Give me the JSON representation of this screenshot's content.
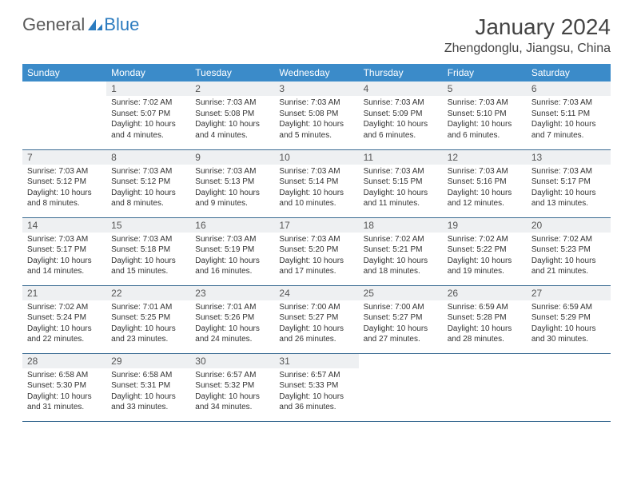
{
  "brand": {
    "part1": "General",
    "part2": "Blue"
  },
  "title": "January 2024",
  "location": "Zhengdonglu, Jiangsu, China",
  "colors": {
    "header_bg": "#3b8bc9",
    "header_text": "#ffffff",
    "daynum_bg": "#eef0f2",
    "row_border": "#3b6c93",
    "logo_gray": "#5a5a5a",
    "logo_blue": "#2b7bbf"
  },
  "weekdays": [
    "Sunday",
    "Monday",
    "Tuesday",
    "Wednesday",
    "Thursday",
    "Friday",
    "Saturday"
  ],
  "weeks": [
    [
      {
        "blank": true
      },
      {
        "n": "1",
        "sr": "7:02 AM",
        "ss": "5:07 PM",
        "dl": "10 hours and 4 minutes."
      },
      {
        "n": "2",
        "sr": "7:03 AM",
        "ss": "5:08 PM",
        "dl": "10 hours and 4 minutes."
      },
      {
        "n": "3",
        "sr": "7:03 AM",
        "ss": "5:08 PM",
        "dl": "10 hours and 5 minutes."
      },
      {
        "n": "4",
        "sr": "7:03 AM",
        "ss": "5:09 PM",
        "dl": "10 hours and 6 minutes."
      },
      {
        "n": "5",
        "sr": "7:03 AM",
        "ss": "5:10 PM",
        "dl": "10 hours and 6 minutes."
      },
      {
        "n": "6",
        "sr": "7:03 AM",
        "ss": "5:11 PM",
        "dl": "10 hours and 7 minutes."
      }
    ],
    [
      {
        "n": "7",
        "sr": "7:03 AM",
        "ss": "5:12 PM",
        "dl": "10 hours and 8 minutes."
      },
      {
        "n": "8",
        "sr": "7:03 AM",
        "ss": "5:12 PM",
        "dl": "10 hours and 8 minutes."
      },
      {
        "n": "9",
        "sr": "7:03 AM",
        "ss": "5:13 PM",
        "dl": "10 hours and 9 minutes."
      },
      {
        "n": "10",
        "sr": "7:03 AM",
        "ss": "5:14 PM",
        "dl": "10 hours and 10 minutes."
      },
      {
        "n": "11",
        "sr": "7:03 AM",
        "ss": "5:15 PM",
        "dl": "10 hours and 11 minutes."
      },
      {
        "n": "12",
        "sr": "7:03 AM",
        "ss": "5:16 PM",
        "dl": "10 hours and 12 minutes."
      },
      {
        "n": "13",
        "sr": "7:03 AM",
        "ss": "5:17 PM",
        "dl": "10 hours and 13 minutes."
      }
    ],
    [
      {
        "n": "14",
        "sr": "7:03 AM",
        "ss": "5:17 PM",
        "dl": "10 hours and 14 minutes."
      },
      {
        "n": "15",
        "sr": "7:03 AM",
        "ss": "5:18 PM",
        "dl": "10 hours and 15 minutes."
      },
      {
        "n": "16",
        "sr": "7:03 AM",
        "ss": "5:19 PM",
        "dl": "10 hours and 16 minutes."
      },
      {
        "n": "17",
        "sr": "7:03 AM",
        "ss": "5:20 PM",
        "dl": "10 hours and 17 minutes."
      },
      {
        "n": "18",
        "sr": "7:02 AM",
        "ss": "5:21 PM",
        "dl": "10 hours and 18 minutes."
      },
      {
        "n": "19",
        "sr": "7:02 AM",
        "ss": "5:22 PM",
        "dl": "10 hours and 19 minutes."
      },
      {
        "n": "20",
        "sr": "7:02 AM",
        "ss": "5:23 PM",
        "dl": "10 hours and 21 minutes."
      }
    ],
    [
      {
        "n": "21",
        "sr": "7:02 AM",
        "ss": "5:24 PM",
        "dl": "10 hours and 22 minutes."
      },
      {
        "n": "22",
        "sr": "7:01 AM",
        "ss": "5:25 PM",
        "dl": "10 hours and 23 minutes."
      },
      {
        "n": "23",
        "sr": "7:01 AM",
        "ss": "5:26 PM",
        "dl": "10 hours and 24 minutes."
      },
      {
        "n": "24",
        "sr": "7:00 AM",
        "ss": "5:27 PM",
        "dl": "10 hours and 26 minutes."
      },
      {
        "n": "25",
        "sr": "7:00 AM",
        "ss": "5:27 PM",
        "dl": "10 hours and 27 minutes."
      },
      {
        "n": "26",
        "sr": "6:59 AM",
        "ss": "5:28 PM",
        "dl": "10 hours and 28 minutes."
      },
      {
        "n": "27",
        "sr": "6:59 AM",
        "ss": "5:29 PM",
        "dl": "10 hours and 30 minutes."
      }
    ],
    [
      {
        "n": "28",
        "sr": "6:58 AM",
        "ss": "5:30 PM",
        "dl": "10 hours and 31 minutes."
      },
      {
        "n": "29",
        "sr": "6:58 AM",
        "ss": "5:31 PM",
        "dl": "10 hours and 33 minutes."
      },
      {
        "n": "30",
        "sr": "6:57 AM",
        "ss": "5:32 PM",
        "dl": "10 hours and 34 minutes."
      },
      {
        "n": "31",
        "sr": "6:57 AM",
        "ss": "5:33 PM",
        "dl": "10 hours and 36 minutes."
      },
      {
        "blank": true
      },
      {
        "blank": true
      },
      {
        "blank": true
      }
    ]
  ],
  "labels": {
    "sunrise": "Sunrise:",
    "sunset": "Sunset:",
    "daylight": "Daylight:"
  }
}
